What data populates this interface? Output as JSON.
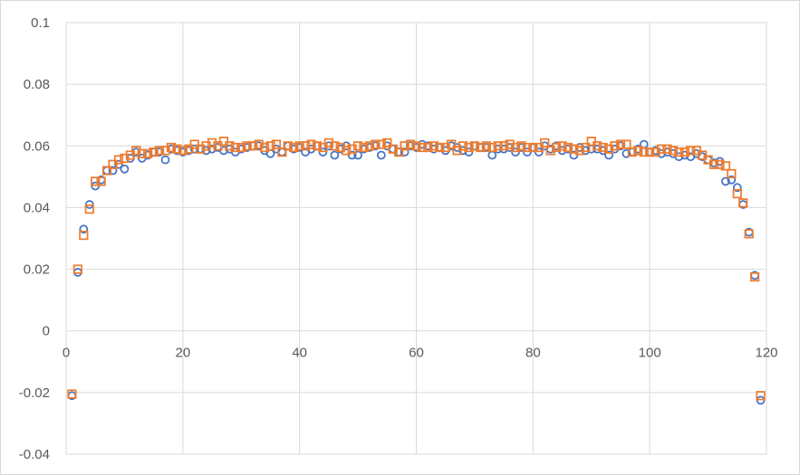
{
  "chart_data": {
    "type": "scatter",
    "title": "",
    "xlabel": "",
    "ylabel": "",
    "xlim": [
      0,
      120
    ],
    "ylim": [
      -0.04,
      0.1
    ],
    "x_ticks": [
      0,
      20,
      40,
      60,
      80,
      100,
      120
    ],
    "y_ticks": [
      -0.04,
      -0.02,
      0,
      0.02,
      0.04,
      0.06,
      0.08,
      0.1
    ],
    "x_tick_labels": [
      "0",
      "20",
      "40",
      "60",
      "80",
      "100",
      "120"
    ],
    "y_tick_labels": [
      "-0.04",
      "-0.02",
      "0",
      "0.02",
      "0.04",
      "0.06",
      "0.08",
      "0.1"
    ],
    "grid": true,
    "legend": "none",
    "series": [
      {
        "marker": "circle",
        "color": "#4472c4",
        "x": [
          1,
          2,
          3,
          4,
          5,
          6,
          7,
          8,
          9,
          10,
          11,
          12,
          13,
          14,
          15,
          16,
          17,
          18,
          19,
          20,
          21,
          22,
          23,
          24,
          25,
          26,
          27,
          28,
          29,
          30,
          31,
          32,
          33,
          34,
          35,
          36,
          37,
          38,
          39,
          40,
          41,
          42,
          43,
          44,
          45,
          46,
          47,
          48,
          49,
          50,
          51,
          52,
          53,
          54,
          55,
          56,
          57,
          58,
          59,
          60,
          61,
          62,
          63,
          64,
          65,
          66,
          67,
          68,
          69,
          70,
          71,
          72,
          73,
          74,
          75,
          76,
          77,
          78,
          79,
          80,
          81,
          82,
          83,
          84,
          85,
          86,
          87,
          88,
          89,
          90,
          91,
          92,
          93,
          94,
          95,
          96,
          97,
          98,
          99,
          100,
          101,
          102,
          103,
          104,
          105,
          106,
          107,
          108,
          109,
          110,
          111,
          112,
          113,
          114,
          115,
          116,
          117,
          118,
          119
        ],
        "y": [
          -0.021,
          0.019,
          0.033,
          0.041,
          0.047,
          0.049,
          0.052,
          0.052,
          0.054,
          0.0525,
          0.056,
          0.058,
          0.056,
          0.057,
          0.058,
          0.058,
          0.0555,
          0.059,
          0.0585,
          0.058,
          0.0585,
          0.059,
          0.059,
          0.0585,
          0.059,
          0.0595,
          0.0585,
          0.059,
          0.058,
          0.059,
          0.0595,
          0.06,
          0.06,
          0.0585,
          0.0575,
          0.059,
          0.058,
          0.06,
          0.059,
          0.0595,
          0.058,
          0.059,
          0.06,
          0.058,
          0.06,
          0.057,
          0.059,
          0.06,
          0.057,
          0.057,
          0.059,
          0.0595,
          0.06,
          0.057,
          0.06,
          0.059,
          0.058,
          0.058,
          0.06,
          0.0595,
          0.0605,
          0.06,
          0.059,
          0.0595,
          0.0585,
          0.06,
          0.0595,
          0.0585,
          0.058,
          0.06,
          0.0595,
          0.0595,
          0.057,
          0.059,
          0.059,
          0.0595,
          0.058,
          0.0595,
          0.058,
          0.0595,
          0.058,
          0.06,
          0.059,
          0.06,
          0.0585,
          0.059,
          0.057,
          0.0595,
          0.0585,
          0.059,
          0.059,
          0.0585,
          0.057,
          0.059,
          0.06,
          0.0575,
          0.058,
          0.059,
          0.0605,
          0.058,
          0.0585,
          0.0575,
          0.058,
          0.0575,
          0.0565,
          0.057,
          0.0565,
          0.0575,
          0.0565,
          0.0555,
          0.0545,
          0.055,
          0.0485,
          0.049,
          0.0465,
          0.041,
          0.032,
          0.018,
          -0.0225
        ]
      },
      {
        "marker": "square",
        "color": "#ed7d31",
        "x": [
          1,
          2,
          3,
          4,
          5,
          6,
          7,
          8,
          9,
          10,
          11,
          12,
          13,
          14,
          15,
          16,
          17,
          18,
          19,
          20,
          21,
          22,
          23,
          24,
          25,
          26,
          27,
          28,
          29,
          30,
          31,
          32,
          33,
          34,
          35,
          36,
          37,
          38,
          39,
          40,
          41,
          42,
          43,
          44,
          45,
          46,
          47,
          48,
          49,
          50,
          51,
          52,
          53,
          54,
          55,
          56,
          57,
          58,
          59,
          60,
          61,
          62,
          63,
          64,
          65,
          66,
          67,
          68,
          69,
          70,
          71,
          72,
          73,
          74,
          75,
          76,
          77,
          78,
          79,
          80,
          81,
          82,
          83,
          84,
          85,
          86,
          87,
          88,
          89,
          90,
          91,
          92,
          93,
          94,
          95,
          96,
          97,
          98,
          99,
          100,
          101,
          102,
          103,
          104,
          105,
          106,
          107,
          108,
          109,
          110,
          111,
          112,
          113,
          114,
          115,
          116,
          117,
          118,
          119
        ],
        "y": [
          -0.0205,
          0.02,
          0.031,
          0.0395,
          0.0485,
          0.0485,
          0.052,
          0.054,
          0.0555,
          0.056,
          0.057,
          0.0585,
          0.0575,
          0.0575,
          0.058,
          0.0585,
          0.0585,
          0.0595,
          0.059,
          0.0585,
          0.059,
          0.0605,
          0.059,
          0.06,
          0.061,
          0.06,
          0.0615,
          0.06,
          0.0595,
          0.0595,
          0.06,
          0.06,
          0.0605,
          0.0595,
          0.06,
          0.0605,
          0.058,
          0.06,
          0.0595,
          0.06,
          0.06,
          0.0605,
          0.06,
          0.0595,
          0.061,
          0.06,
          0.0595,
          0.0585,
          0.059,
          0.06,
          0.0595,
          0.06,
          0.0605,
          0.0605,
          0.061,
          0.059,
          0.058,
          0.06,
          0.0605,
          0.06,
          0.0595,
          0.0595,
          0.06,
          0.0595,
          0.0595,
          0.0605,
          0.0585,
          0.06,
          0.0595,
          0.06,
          0.0595,
          0.06,
          0.0595,
          0.06,
          0.06,
          0.0605,
          0.0595,
          0.06,
          0.0595,
          0.0595,
          0.0595,
          0.061,
          0.0585,
          0.0595,
          0.06,
          0.0595,
          0.059,
          0.0585,
          0.0595,
          0.0615,
          0.06,
          0.0595,
          0.059,
          0.06,
          0.0605,
          0.0605,
          0.058,
          0.0585,
          0.058,
          0.058,
          0.058,
          0.059,
          0.059,
          0.0585,
          0.058,
          0.058,
          0.0585,
          0.0585,
          0.057,
          0.0555,
          0.054,
          0.054,
          0.0535,
          0.051,
          0.0445,
          0.0415,
          0.0315,
          0.0175,
          -0.021
        ]
      }
    ]
  }
}
